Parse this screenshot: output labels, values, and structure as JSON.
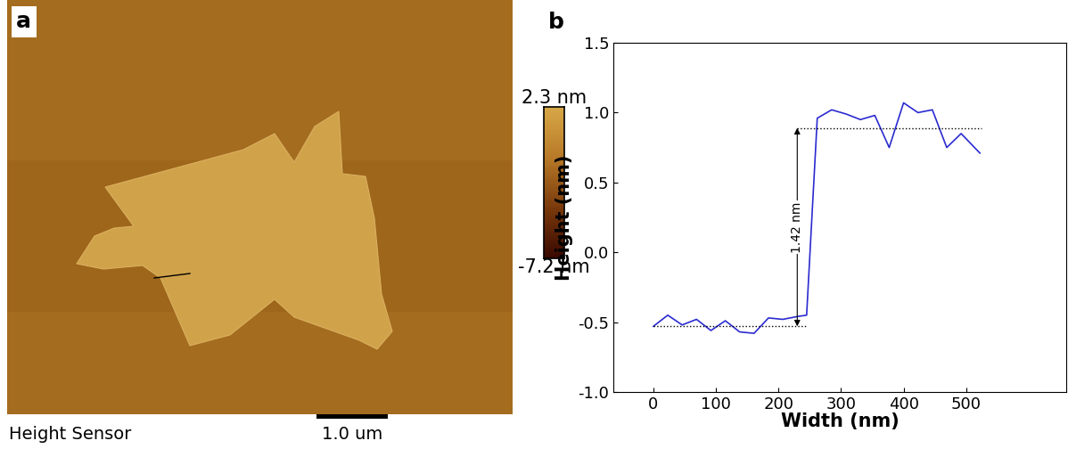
{
  "chart_data": [
    {
      "type": "image",
      "panel": "a",
      "caption": "Height Sensor",
      "scale_bar": "1.0 um",
      "colorbar": {
        "range": [
          -7.2,
          2.3
        ],
        "ticks": [
          {
            "value": 2.3,
            "label": "2.3 nm"
          },
          {
            "value": -7.2,
            "label": "-7.2 nm"
          }
        ]
      }
    },
    {
      "type": "line",
      "panel": "b",
      "x_label": "Width (nm)",
      "y_label": "Height (nm)",
      "x": [
        0,
        23,
        46,
        69,
        92,
        115,
        138,
        161,
        184,
        207,
        230,
        245,
        262,
        285,
        308,
        331,
        354,
        377,
        400,
        423,
        446,
        469,
        492,
        522
      ],
      "values": [
        -0.53,
        -0.45,
        -0.52,
        -0.48,
        -0.56,
        -0.49,
        -0.57,
        -0.58,
        -0.47,
        -0.48,
        -0.46,
        -0.45,
        0.96,
        1.02,
        0.99,
        0.95,
        0.98,
        0.75,
        1.07,
        1.0,
        1.02,
        0.75,
        0.85,
        0.71
      ],
      "color": "#2b2bd0",
      "reference_lines": [
        {
          "y": -0.53,
          "x": [
            0,
            245
          ]
        },
        {
          "y": 0.89,
          "x": [
            230,
            525
          ]
        }
      ],
      "annotation": {
        "text": "1.42 nm",
        "x": 230,
        "y": [
          -0.53,
          0.89
        ]
      },
      "xlim": [
        -64,
        660
      ],
      "xticks": [
        0,
        100,
        200,
        300,
        400,
        500
      ],
      "ylim": [
        -1.0,
        1.5
      ],
      "yticks": [
        {
          "value": -1.0,
          "label": "-1.0"
        },
        {
          "value": -0.5,
          "label": "-0.5"
        },
        {
          "value": 0.0,
          "label": "0.0"
        },
        {
          "value": 0.5,
          "label": "0.5"
        },
        {
          "value": 1.0,
          "label": "1.0"
        },
        {
          "value": 1.5,
          "label": "1.5"
        }
      ]
    }
  ]
}
